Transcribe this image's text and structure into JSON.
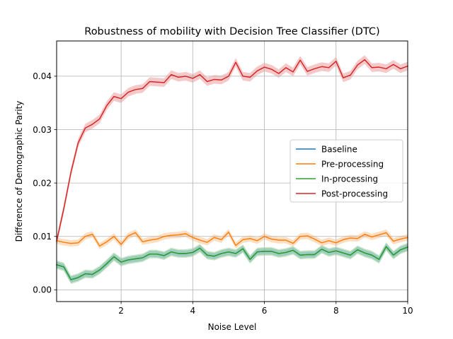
{
  "chart_data": {
    "type": "line",
    "title": "Robustness of mobility with Decision Tree Classifier (DTC)",
    "xlabel": "Noise Level",
    "ylabel": "Difference of Demographic Parity",
    "xlim": [
      0.2,
      10
    ],
    "ylim": [
      -0.0022,
      0.0466
    ],
    "xticks": [
      2,
      4,
      6,
      8,
      10
    ],
    "xtick_labels": [
      "2",
      "4",
      "6",
      "8",
      "10"
    ],
    "yticks": [
      0,
      0.01,
      0.02,
      0.03,
      0.04
    ],
    "ytick_labels": [
      "0.00",
      "0.01",
      "0.02",
      "0.03",
      "0.04"
    ],
    "grid": true,
    "legend_position": "center-right",
    "x": [
      0.2,
      0.4,
      0.6,
      0.8,
      1.0,
      1.2,
      1.4,
      1.6,
      1.8,
      2.0,
      2.2,
      2.4,
      2.6,
      2.8,
      3.0,
      3.2,
      3.4,
      3.6,
      3.8,
      4.0,
      4.2,
      4.4,
      4.6,
      4.8,
      5.0,
      5.2,
      5.4,
      5.6,
      5.8,
      6.0,
      6.2,
      6.4,
      6.6,
      6.8,
      7.0,
      7.2,
      7.4,
      7.6,
      7.8,
      8.0,
      8.2,
      8.4,
      8.6,
      8.8,
      9.0,
      9.2,
      9.4,
      9.6,
      9.8,
      10.0
    ],
    "series": [
      {
        "name": "Baseline",
        "color": "#1f77b4",
        "band": 0.0006,
        "values": [
          0.0047,
          0.0043,
          0.0019,
          0.0023,
          0.003,
          0.0029,
          0.0037,
          0.0049,
          0.0062,
          0.0052,
          0.0056,
          0.0058,
          0.006,
          0.0067,
          0.0067,
          0.0064,
          0.0071,
          0.0068,
          0.0068,
          0.007,
          0.0078,
          0.0065,
          0.0063,
          0.0068,
          0.0071,
          0.0068,
          0.0077,
          0.0057,
          0.0071,
          0.0072,
          0.0072,
          0.0068,
          0.007,
          0.0074,
          0.0065,
          0.0066,
          0.0066,
          0.0076,
          0.007,
          0.0073,
          0.0069,
          0.0065,
          0.0075,
          0.0069,
          0.0065,
          0.0057,
          0.0081,
          0.0065,
          0.0075,
          0.008
        ]
      },
      {
        "name": "Pre-processing",
        "color": "#ff7f0e",
        "band": 0.0006,
        "values": [
          0.0092,
          0.0089,
          0.0087,
          0.0088,
          0.01,
          0.0104,
          0.0082,
          0.009,
          0.01,
          0.0085,
          0.0101,
          0.0107,
          0.009,
          0.0093,
          0.0095,
          0.01,
          0.0102,
          0.0103,
          0.0105,
          0.0098,
          0.0093,
          0.0089,
          0.0098,
          0.0094,
          0.0108,
          0.0083,
          0.0094,
          0.0096,
          0.0092,
          0.01,
          0.0095,
          0.0093,
          0.0093,
          0.0087,
          0.01,
          0.0101,
          0.0095,
          0.0088,
          0.0092,
          0.0088,
          0.0094,
          0.0097,
          0.0096,
          0.0104,
          0.0099,
          0.0103,
          0.0107,
          0.0091,
          0.0095,
          0.0098
        ]
      },
      {
        "name": "In-processing",
        "color": "#2ca02c",
        "band": 0.0008,
        "values": [
          0.0047,
          0.0043,
          0.0019,
          0.0023,
          0.003,
          0.0029,
          0.0037,
          0.0049,
          0.0062,
          0.0052,
          0.0056,
          0.0058,
          0.006,
          0.0067,
          0.0067,
          0.0064,
          0.0071,
          0.0068,
          0.0068,
          0.007,
          0.0078,
          0.0065,
          0.0063,
          0.0068,
          0.0071,
          0.0068,
          0.0077,
          0.0057,
          0.0071,
          0.0072,
          0.0072,
          0.0068,
          0.007,
          0.0074,
          0.0065,
          0.0066,
          0.0066,
          0.0076,
          0.007,
          0.0073,
          0.0069,
          0.0065,
          0.0075,
          0.0069,
          0.0065,
          0.0057,
          0.0081,
          0.0065,
          0.0075,
          0.008
        ]
      },
      {
        "name": "Post-processing",
        "color": "#d62728",
        "band": 0.0008,
        "values": [
          0.0091,
          0.0152,
          0.022,
          0.0275,
          0.0303,
          0.031,
          0.032,
          0.0345,
          0.0362,
          0.0358,
          0.037,
          0.0375,
          0.0377,
          0.039,
          0.0389,
          0.0388,
          0.0403,
          0.0398,
          0.04,
          0.0396,
          0.0403,
          0.039,
          0.0394,
          0.0393,
          0.04,
          0.0426,
          0.04,
          0.0398,
          0.041,
          0.0417,
          0.0413,
          0.0405,
          0.0416,
          0.0408,
          0.043,
          0.0409,
          0.0414,
          0.0418,
          0.0416,
          0.0428,
          0.0397,
          0.0402,
          0.0421,
          0.0431,
          0.0416,
          0.0417,
          0.0414,
          0.0422,
          0.0414,
          0.0419
        ]
      }
    ]
  }
}
